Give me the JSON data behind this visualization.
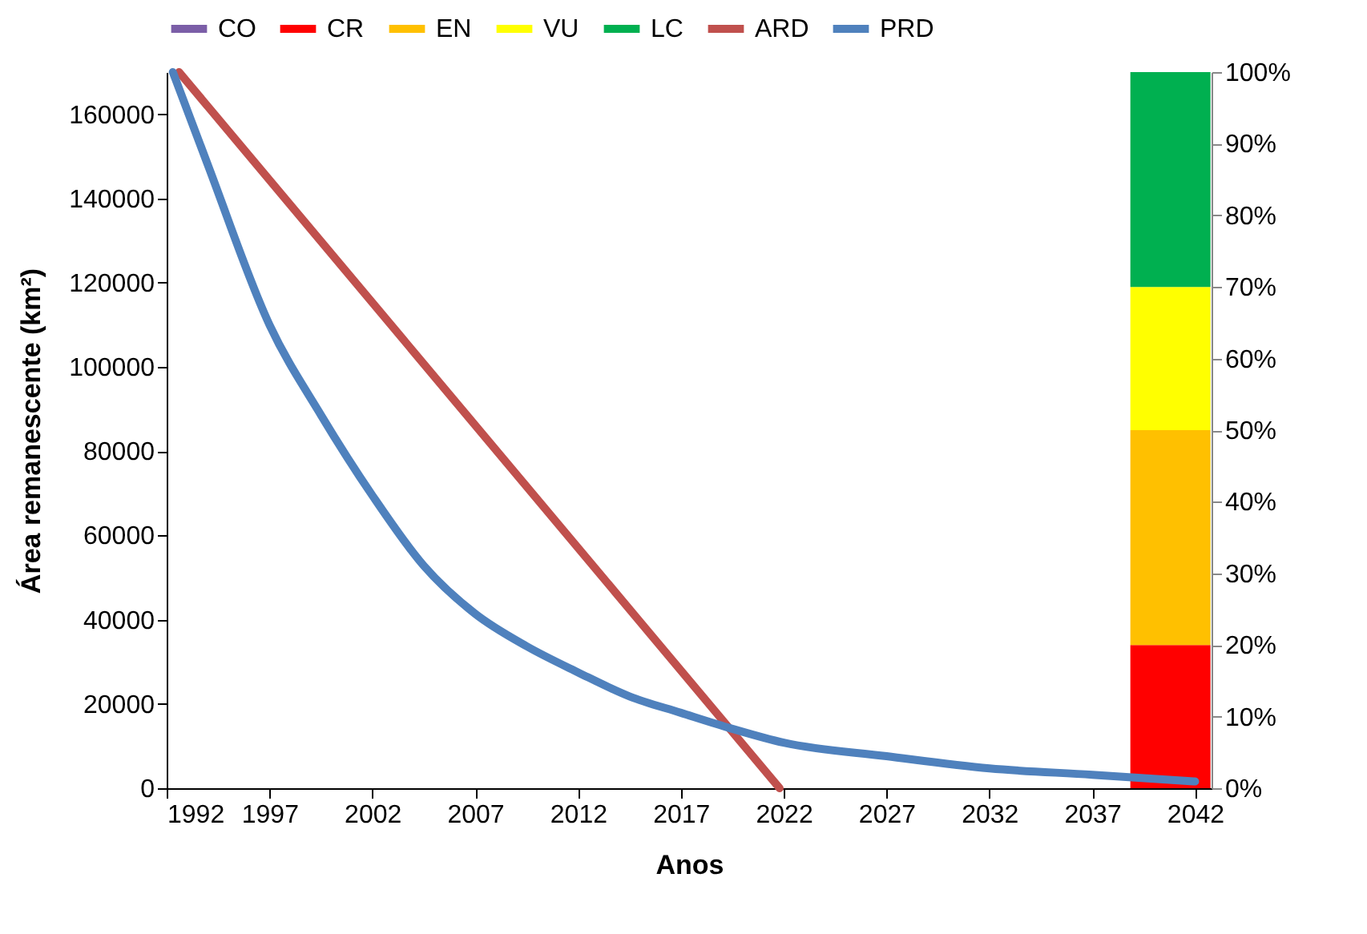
{
  "chart_data": {
    "type": "line",
    "xlabel": "Anos",
    "ylabel": "Área remanescente (km²)",
    "xlim": [
      1992,
      2042.8
    ],
    "xticks": [
      1992,
      1997,
      2002,
      2007,
      2012,
      2017,
      2022,
      2027,
      2032,
      2037,
      2042
    ],
    "ylim": [
      0,
      170000
    ],
    "yticks": [
      0,
      20000,
      40000,
      60000,
      80000,
      100000,
      120000,
      140000,
      160000
    ],
    "y2lim": [
      0,
      100
    ],
    "y2ticks": [
      {
        "value": 0,
        "label": "0%"
      },
      {
        "value": 10,
        "label": "10%"
      },
      {
        "value": 20,
        "label": "20%"
      },
      {
        "value": 30,
        "label": "30%"
      },
      {
        "value": 40,
        "label": "40%"
      },
      {
        "value": 50,
        "label": "50%"
      },
      {
        "value": 60,
        "label": "60%"
      },
      {
        "value": 70,
        "label": "70%"
      },
      {
        "value": 80,
        "label": "80%"
      },
      {
        "value": 90,
        "label": "90%"
      },
      {
        "value": 100,
        "label": "100%"
      }
    ],
    "legend": "top",
    "stacked": true,
    "series": [
      {
        "name": "CO",
        "type": "bar",
        "axis": "y2",
        "color": "#7b5ea7",
        "x": [
          2040.8
        ],
        "values": [
          0
        ]
      },
      {
        "name": "CR",
        "type": "bar",
        "axis": "y2",
        "color": "#ff0000",
        "x": [
          2040.8
        ],
        "values": [
          20
        ]
      },
      {
        "name": "EN",
        "type": "bar",
        "axis": "y2",
        "color": "#ffc000",
        "x": [
          2040.8
        ],
        "values": [
          30
        ]
      },
      {
        "name": "VU",
        "type": "bar",
        "axis": "y2",
        "color": "#ffff00",
        "x": [
          2040.8
        ],
        "values": [
          20
        ]
      },
      {
        "name": "LC",
        "type": "bar",
        "axis": "y2",
        "color": "#00b050",
        "x": [
          2040.8
        ],
        "values": [
          30
        ]
      },
      {
        "name": "ARD",
        "color": "#c0504d",
        "x": [
          1992.6,
          2021.8
        ],
        "values": [
          170000,
          0
        ]
      },
      {
        "name": "PRD",
        "color": "#4f81bd",
        "x": [
          1992.3,
          1994,
          1997,
          1999.5,
          2002,
          2004.5,
          2007,
          2009.5,
          2012,
          2014.5,
          2017,
          2019.5,
          2022,
          2027,
          2032,
          2037,
          2042
        ],
        "values": [
          170000,
          148000,
          110000,
          88600,
          69500,
          52800,
          41400,
          33700,
          27500,
          21800,
          17900,
          14100,
          10800,
          7600,
          4700,
          3200,
          1600
        ]
      }
    ]
  }
}
